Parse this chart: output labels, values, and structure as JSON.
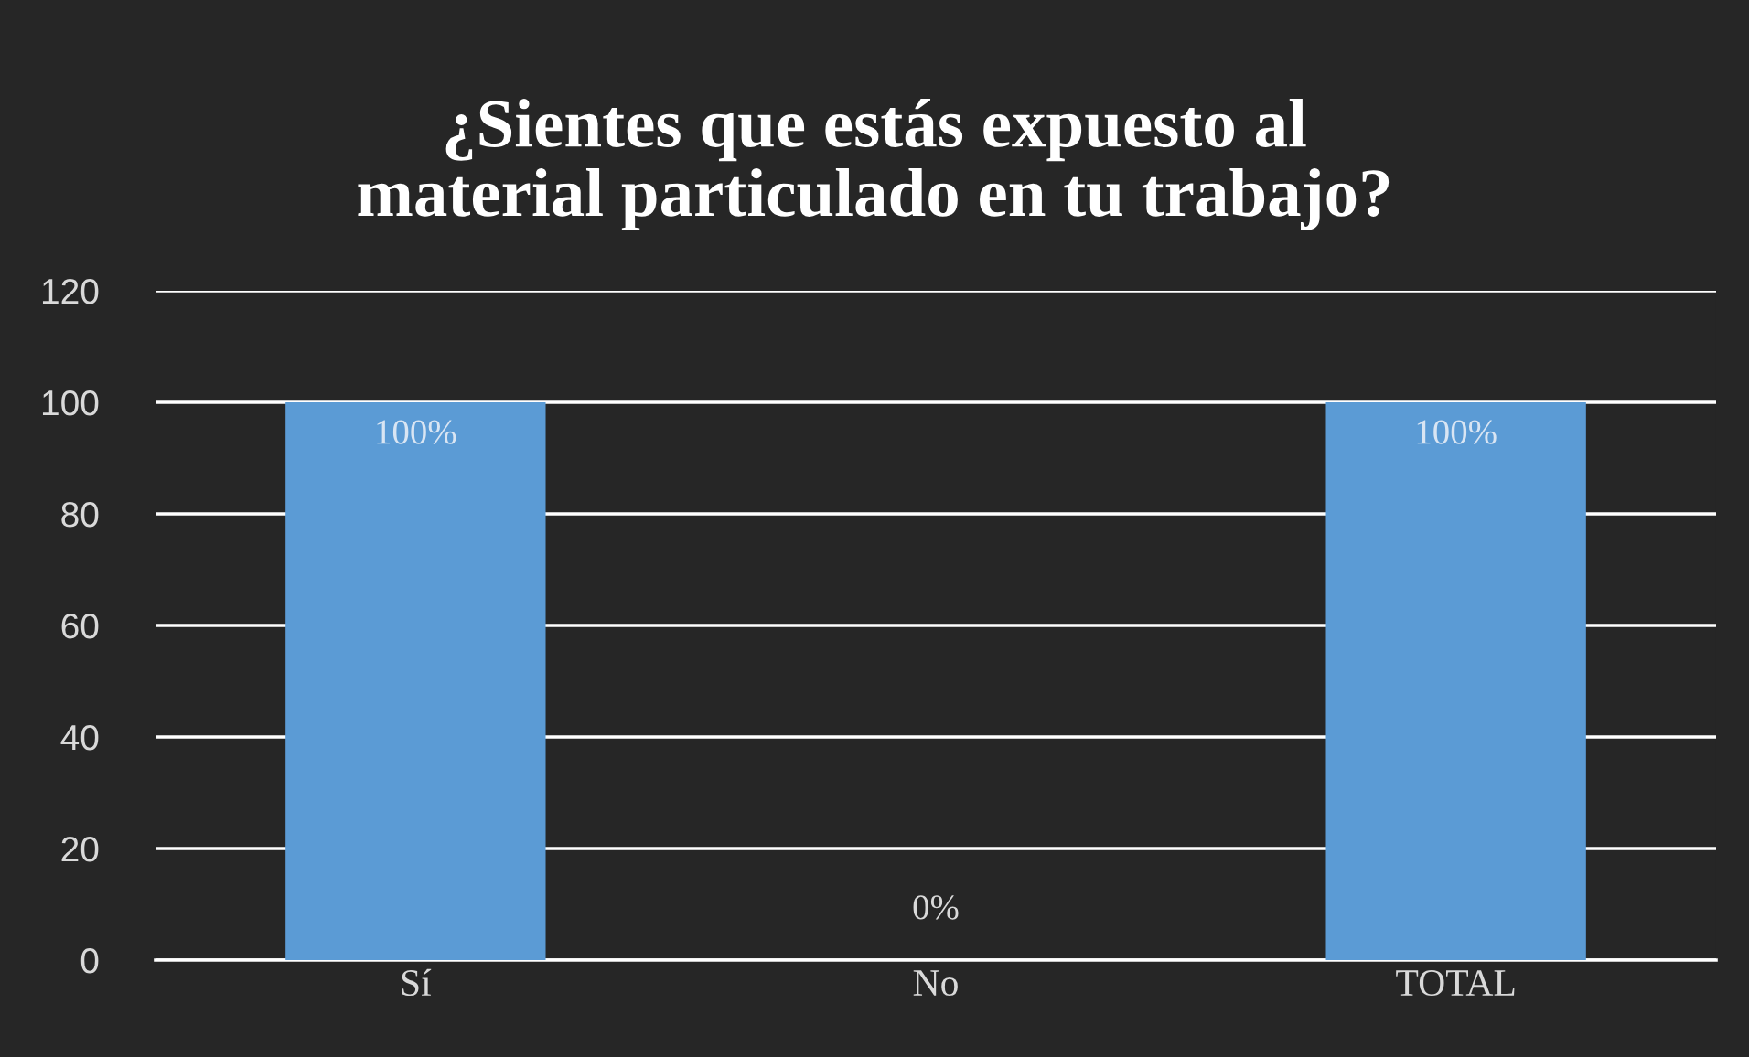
{
  "chart_data": {
    "type": "bar",
    "title": "¿Sientes que estás expuesto al\nmaterial particulado en tu trabajo?",
    "categories": [
      "Sí",
      "No",
      "TOTAL"
    ],
    "values": [
      100,
      0,
      100
    ],
    "value_labels": [
      "100%",
      "0%",
      "100%"
    ],
    "color": "#5b9bd5",
    "ylim": [
      0,
      120
    ],
    "yticks": [
      0,
      20,
      40,
      60,
      80,
      100,
      120
    ],
    "grid": "y"
  }
}
